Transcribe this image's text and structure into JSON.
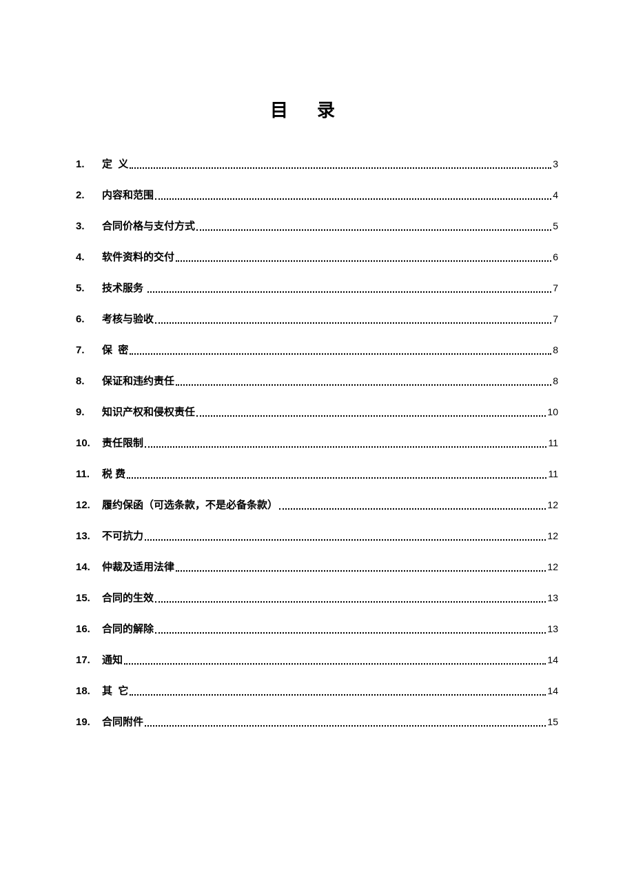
{
  "title": "目录",
  "toc": [
    {
      "num": "1.",
      "label": "定  义",
      "page": "3"
    },
    {
      "num": "2.",
      "label": "内容和范围",
      "page": "4"
    },
    {
      "num": "3.",
      "label": "合同价格与支付方式",
      "page": "5"
    },
    {
      "num": "4.",
      "label": "软件资料的交付",
      "page": "6"
    },
    {
      "num": "5.",
      "label": "技术服务 ",
      "page": "7"
    },
    {
      "num": "6.",
      "label": "考核与验收",
      "page": "7"
    },
    {
      "num": "7.",
      "label": "保  密",
      "page": "8"
    },
    {
      "num": "8.",
      "label": "保证和违约责任",
      "page": "8"
    },
    {
      "num": "9.",
      "label": "知识产权和侵权责任",
      "page": "10"
    },
    {
      "num": "10.",
      "label": "责任限制",
      "page": "11"
    },
    {
      "num": "11.",
      "label": "税 费",
      "page": "11"
    },
    {
      "num": "12.",
      "label": "履约保函（可选条款，不是必备条款）",
      "page": "12"
    },
    {
      "num": "13.",
      "label": "不可抗力",
      "page": "12"
    },
    {
      "num": "14.",
      "label": "仲裁及适用法律",
      "page": "12"
    },
    {
      "num": "15.",
      "label": "合同的生效",
      "page": "13"
    },
    {
      "num": "16.",
      "label": "合同的解除",
      "page": "13"
    },
    {
      "num": "17.",
      "label": "通知",
      "page": "14"
    },
    {
      "num": "18.",
      "label": "其  它",
      "page": "14"
    },
    {
      "num": "19.",
      "label": "合同附件",
      "page": "15"
    }
  ]
}
